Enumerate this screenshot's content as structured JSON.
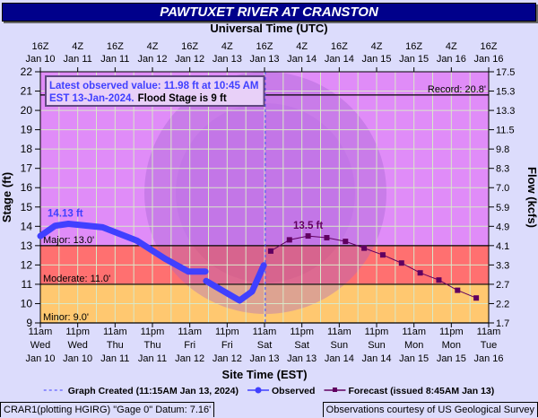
{
  "title": "PAWTUXET RIVER AT CRANSTON",
  "colors": {
    "major": "#e08cf8",
    "moderate": "#ff7070",
    "minor": "#ffc870",
    "observed": "#4040ff",
    "forecast": "#600060",
    "background": "#dcdcfc",
    "title_bar": "#00008b"
  },
  "info_box": {
    "line1": "Latest observed value: 11.98 ft at 10:45 AM",
    "line2_blue": "EST 13-Jan-2024.",
    "line2_black": "Flood Stage is 9 ft"
  },
  "chart_data": {
    "type": "line",
    "top_axis_title": "Universal Time (UTC)",
    "top_ticks": [
      [
        "16Z",
        "Jan 10"
      ],
      [
        "4Z",
        "Jan 11"
      ],
      [
        "16Z",
        "Jan 11"
      ],
      [
        "4Z",
        "Jan 12"
      ],
      [
        "16Z",
        "Jan 12"
      ],
      [
        "4Z",
        "Jan 13"
      ],
      [
        "16Z",
        "Jan 13"
      ],
      [
        "4Z",
        "Jan 14"
      ],
      [
        "16Z",
        "Jan 14"
      ],
      [
        "4Z",
        "Jan 15"
      ],
      [
        "16Z",
        "Jan 15"
      ],
      [
        "4Z",
        "Jan 16"
      ],
      [
        "16Z",
        "Jan 16"
      ]
    ],
    "xlabel": "Site Time (EST)",
    "x_ticks": [
      [
        "11am",
        "Wed",
        "Jan 10"
      ],
      [
        "11pm",
        "Wed",
        "Jan 10"
      ],
      [
        "11am",
        "Thu",
        "Jan 11"
      ],
      [
        "11pm",
        "Thu",
        "Jan 11"
      ],
      [
        "11am",
        "Fri",
        "Jan 12"
      ],
      [
        "11pm",
        "Fri",
        "Jan 12"
      ],
      [
        "11am",
        "Sat",
        "Jan 13"
      ],
      [
        "11pm",
        "Sat",
        "Jan 13"
      ],
      [
        "11am",
        "Sun",
        "Jan 14"
      ],
      [
        "11pm",
        "Sun",
        "Jan 14"
      ],
      [
        "11am",
        "Mon",
        "Jan 15"
      ],
      [
        "11pm",
        "Mon",
        "Jan 15"
      ],
      [
        "11am",
        "Tue",
        "Jan 16"
      ]
    ],
    "xlim": [
      "2024-01-10T11:00",
      "2024-01-16T11:00"
    ],
    "ylabel": "Stage (ft)",
    "ylim": [
      9,
      22
    ],
    "y_ticks": [
      9,
      10,
      11,
      12,
      13,
      14,
      15,
      16,
      17,
      18,
      19,
      20,
      21,
      22
    ],
    "y2label": "Flow (kcfs)",
    "y2_ticks": [
      "1.7",
      "2.2",
      "2.7",
      "3.3",
      "4.1",
      "4.9",
      "5.9",
      "7.0",
      "8.3",
      "9.8",
      "11.5",
      "13.3",
      "15.3",
      "17.5"
    ],
    "grid": true,
    "thresholds": [
      {
        "label": "Record: 20.8'",
        "value": 20.8
      },
      {
        "label": "Major: 13.0'",
        "value": 13.0
      },
      {
        "label": "Moderate: 11.0'",
        "value": 11.0
      },
      {
        "label": "Minor: 9.0'",
        "value": 9.0
      }
    ],
    "graph_created": "2024-01-13T11:15",
    "series": [
      {
        "name": "Observed",
        "peak_label": "14.13 ft",
        "points": [
          [
            "2024-01-10T11:00",
            13.5
          ],
          [
            "2024-01-10T15:45",
            14.03
          ],
          [
            "2024-01-10T20:00",
            14.13
          ],
          [
            "2024-01-11T07:00",
            13.95
          ],
          [
            "2024-01-11T18:00",
            13.26
          ],
          [
            "2024-01-12T03:00",
            12.33
          ],
          [
            "2024-01-12T10:30",
            11.66
          ],
          [
            "2024-01-12T16:00",
            11.66
          ],
          null,
          [
            "2024-01-12T16:15",
            11.17
          ],
          [
            "2024-01-13T03:00",
            10.16
          ],
          [
            "2024-01-13T07:00",
            10.63
          ],
          [
            "2024-01-13T10:45",
            11.98
          ]
        ]
      },
      {
        "name": "Forecast (issued 8:45AM Jan 13)",
        "peak_label": "13.5 ft",
        "points": [
          [
            "2024-01-13T13:00",
            12.72
          ],
          [
            "2024-01-13T19:00",
            13.3
          ],
          [
            "2024-01-14T01:00",
            13.5
          ],
          [
            "2024-01-14T07:00",
            13.41
          ],
          [
            "2024-01-14T13:00",
            13.22
          ],
          [
            "2024-01-14T19:00",
            12.87
          ],
          [
            "2024-01-15T01:00",
            12.52
          ],
          [
            "2024-01-15T07:00",
            12.1
          ],
          [
            "2024-01-15T13:00",
            11.59
          ],
          [
            "2024-01-15T19:00",
            11.22
          ],
          [
            "2024-01-16T01:00",
            10.69
          ],
          [
            "2024-01-16T07:00",
            10.29
          ]
        ]
      }
    ],
    "legend": {
      "graph_created": "Graph Created (11:15AM Jan 13, 2024)",
      "observed": "Observed",
      "forecast": "Forecast (issued 8:45AM Jan 13)"
    }
  },
  "footer": {
    "left": "CRAR1(plotting HGIRG) \"Gage 0\" Datum: 7.16'",
    "right": "Observations courtesy of US Geological Survey"
  }
}
